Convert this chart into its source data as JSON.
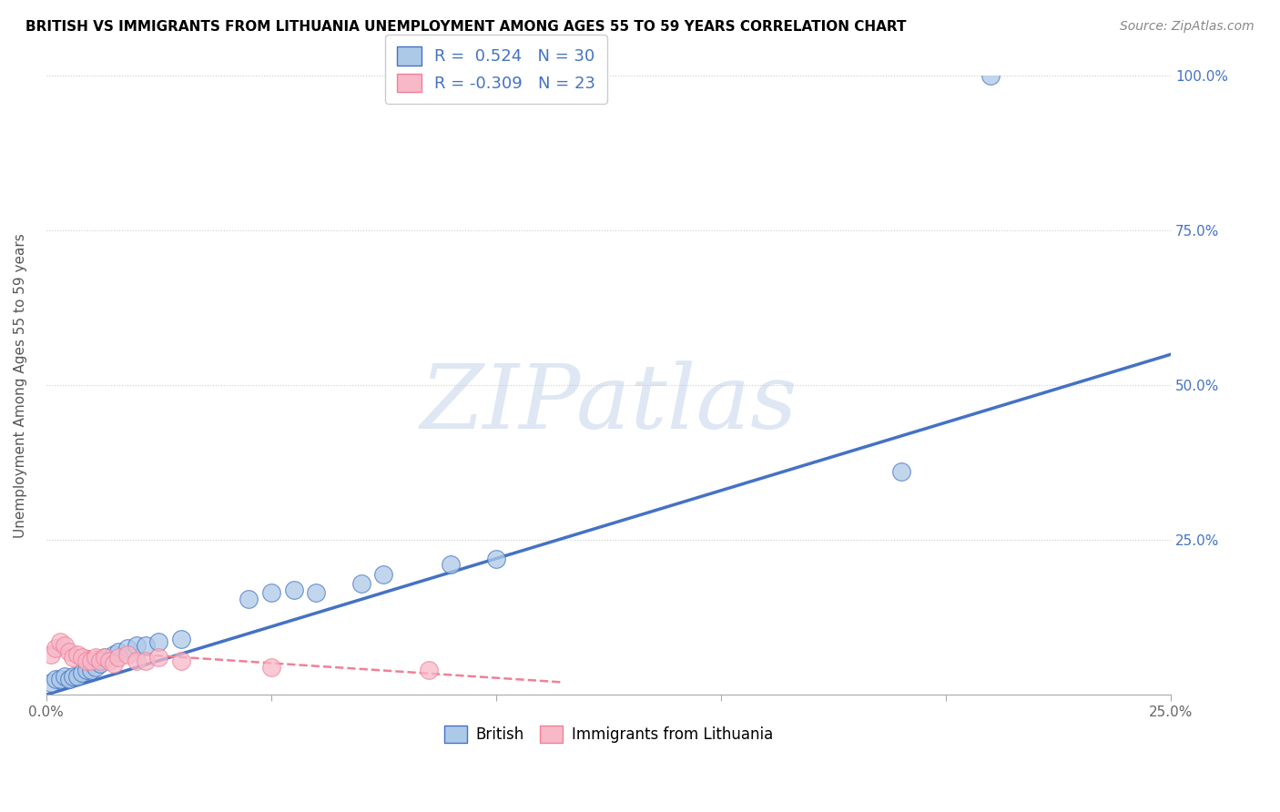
{
  "title": "BRITISH VS IMMIGRANTS FROM LITHUANIA UNEMPLOYMENT AMONG AGES 55 TO 59 YEARS CORRELATION CHART",
  "source": "Source: ZipAtlas.com",
  "ylabel": "Unemployment Among Ages 55 to 59 years",
  "xlim": [
    0.0,
    0.25
  ],
  "ylim": [
    0.0,
    1.0
  ],
  "xticks": [
    0.0,
    0.05,
    0.1,
    0.15,
    0.2,
    0.25
  ],
  "yticks": [
    0.0,
    0.25,
    0.5,
    0.75,
    1.0
  ],
  "xticklabels": [
    "0.0%",
    "",
    "",
    "",
    "",
    "25.0%"
  ],
  "yticklabels_right": [
    "",
    "25.0%",
    "50.0%",
    "75.0%",
    "100.0%"
  ],
  "british_R": 0.524,
  "british_N": 30,
  "lithuania_R": -0.309,
  "lithuania_N": 23,
  "british_color": "#adc9e8",
  "lithuania_color": "#f7b8c8",
  "british_line_color": "#4472c4",
  "lithuania_line_color": "#f08098",
  "watermark": "ZIPatlas",
  "british_x": [
    0.001,
    0.002,
    0.003,
    0.004,
    0.005,
    0.006,
    0.007,
    0.008,
    0.009,
    0.01,
    0.011,
    0.012,
    0.013,
    0.015,
    0.016,
    0.018,
    0.02,
    0.022,
    0.025,
    0.03,
    0.045,
    0.05,
    0.055,
    0.06,
    0.07,
    0.075,
    0.09,
    0.1,
    0.19,
    0.21
  ],
  "british_y": [
    0.02,
    0.025,
    0.025,
    0.03,
    0.025,
    0.03,
    0.03,
    0.035,
    0.04,
    0.04,
    0.045,
    0.05,
    0.06,
    0.065,
    0.07,
    0.075,
    0.08,
    0.08,
    0.085,
    0.09,
    0.155,
    0.165,
    0.17,
    0.165,
    0.18,
    0.195,
    0.21,
    0.22,
    0.36,
    1.0
  ],
  "lithuania_x": [
    0.001,
    0.002,
    0.003,
    0.004,
    0.005,
    0.006,
    0.007,
    0.008,
    0.009,
    0.01,
    0.011,
    0.012,
    0.013,
    0.014,
    0.015,
    0.016,
    0.018,
    0.02,
    0.022,
    0.025,
    0.03,
    0.05,
    0.085
  ],
  "lithuania_y": [
    0.065,
    0.075,
    0.085,
    0.08,
    0.07,
    0.06,
    0.065,
    0.06,
    0.055,
    0.055,
    0.06,
    0.055,
    0.06,
    0.055,
    0.05,
    0.06,
    0.065,
    0.055,
    0.055,
    0.06,
    0.055,
    0.045,
    0.04
  ],
  "blue_line_x": [
    0.0,
    0.25
  ],
  "blue_line_y": [
    0.0,
    0.55
  ],
  "pink_line_x": [
    0.0,
    0.115
  ],
  "pink_line_y": [
    0.075,
    0.02
  ]
}
